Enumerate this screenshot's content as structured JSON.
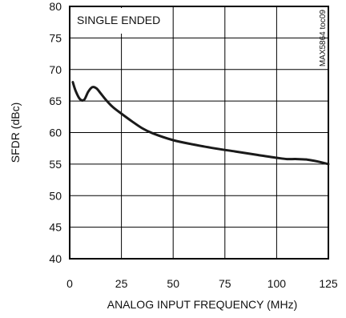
{
  "chart_data": {
    "type": "line",
    "title": "",
    "xlabel": "ANALOG INPUT FREQUENCY (MHz)",
    "ylabel": "SFDR (dBc)",
    "xlim": [
      0,
      125
    ],
    "ylim": [
      40,
      80
    ],
    "xticks": [
      0,
      25,
      50,
      75,
      100,
      125
    ],
    "yticks": [
      40,
      45,
      50,
      55,
      60,
      65,
      70,
      75,
      80
    ],
    "grid": true,
    "annotation": "SINGLE ENDED",
    "figure_code": "MAX5864 toc09",
    "series": [
      {
        "x": [
          1.5,
          3,
          5,
          7,
          9,
          11,
          13,
          15,
          18,
          21,
          25,
          30,
          35,
          40,
          50,
          60,
          70,
          80,
          90,
          100,
          105,
          110,
          115,
          120,
          125
        ],
        "y": [
          68,
          66.5,
          65.3,
          65.2,
          66.5,
          67.2,
          67.0,
          66.2,
          65.0,
          64.0,
          63.0,
          61.8,
          60.7,
          59.9,
          58.8,
          58.1,
          57.5,
          57.0,
          56.5,
          56.0,
          55.8,
          55.8,
          55.7,
          55.4,
          55.0
        ]
      }
    ]
  }
}
